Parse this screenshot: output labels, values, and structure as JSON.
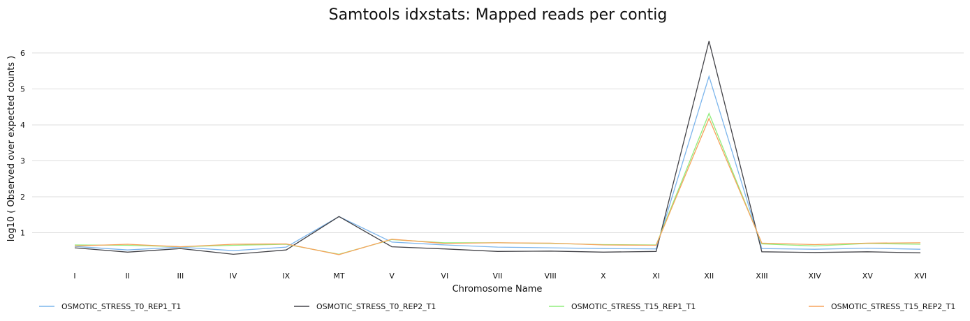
{
  "chart_data": {
    "type": "line",
    "title": "Samtools idxstats: Mapped reads per contig",
    "xlabel": "Chromosome Name",
    "ylabel": "log10 ( Observed over expected counts )",
    "categories": [
      "I",
      "II",
      "III",
      "IV",
      "IX",
      "MT",
      "V",
      "VI",
      "VII",
      "VIII",
      "X",
      "XI",
      "XII",
      "XIII",
      "XIV",
      "XV",
      "XVI"
    ],
    "ylim": [
      0.0,
      6.6
    ],
    "yticks": [
      1,
      2,
      3,
      4,
      5,
      6
    ],
    "grid": "horizontal",
    "legend_position": "bottom",
    "series": [
      {
        "name": "OSMOTIC_STRESS_T0_REP1_T1",
        "color": "#7cb5ec",
        "values": [
          0.62,
          0.52,
          0.6,
          0.5,
          0.6,
          1.45,
          0.74,
          0.66,
          0.6,
          0.58,
          0.56,
          0.55,
          5.35,
          0.56,
          0.54,
          0.57,
          0.54
        ]
      },
      {
        "name": "OSMOTIC_STRESS_T0_REP2_T1",
        "color": "#434348",
        "values": [
          0.58,
          0.46,
          0.56,
          0.4,
          0.52,
          1.45,
          0.61,
          0.55,
          0.48,
          0.49,
          0.46,
          0.48,
          6.33,
          0.47,
          0.45,
          0.47,
          0.44
        ]
      },
      {
        "name": "OSMOTIC_STRESS_T15_REP1_T1",
        "color": "#90ed7d",
        "values": [
          0.66,
          0.65,
          0.61,
          0.65,
          0.68,
          0.4,
          0.81,
          0.72,
          0.72,
          0.7,
          0.67,
          0.66,
          4.32,
          0.69,
          0.63,
          0.7,
          0.68
        ]
      },
      {
        "name": "OSMOTIC_STRESS_T15_REP2_T1",
        "color": "#f7a35c",
        "values": [
          0.63,
          0.68,
          0.61,
          0.68,
          0.69,
          0.39,
          0.82,
          0.7,
          0.72,
          0.71,
          0.66,
          0.65,
          4.18,
          0.71,
          0.67,
          0.71,
          0.72
        ]
      }
    ]
  }
}
